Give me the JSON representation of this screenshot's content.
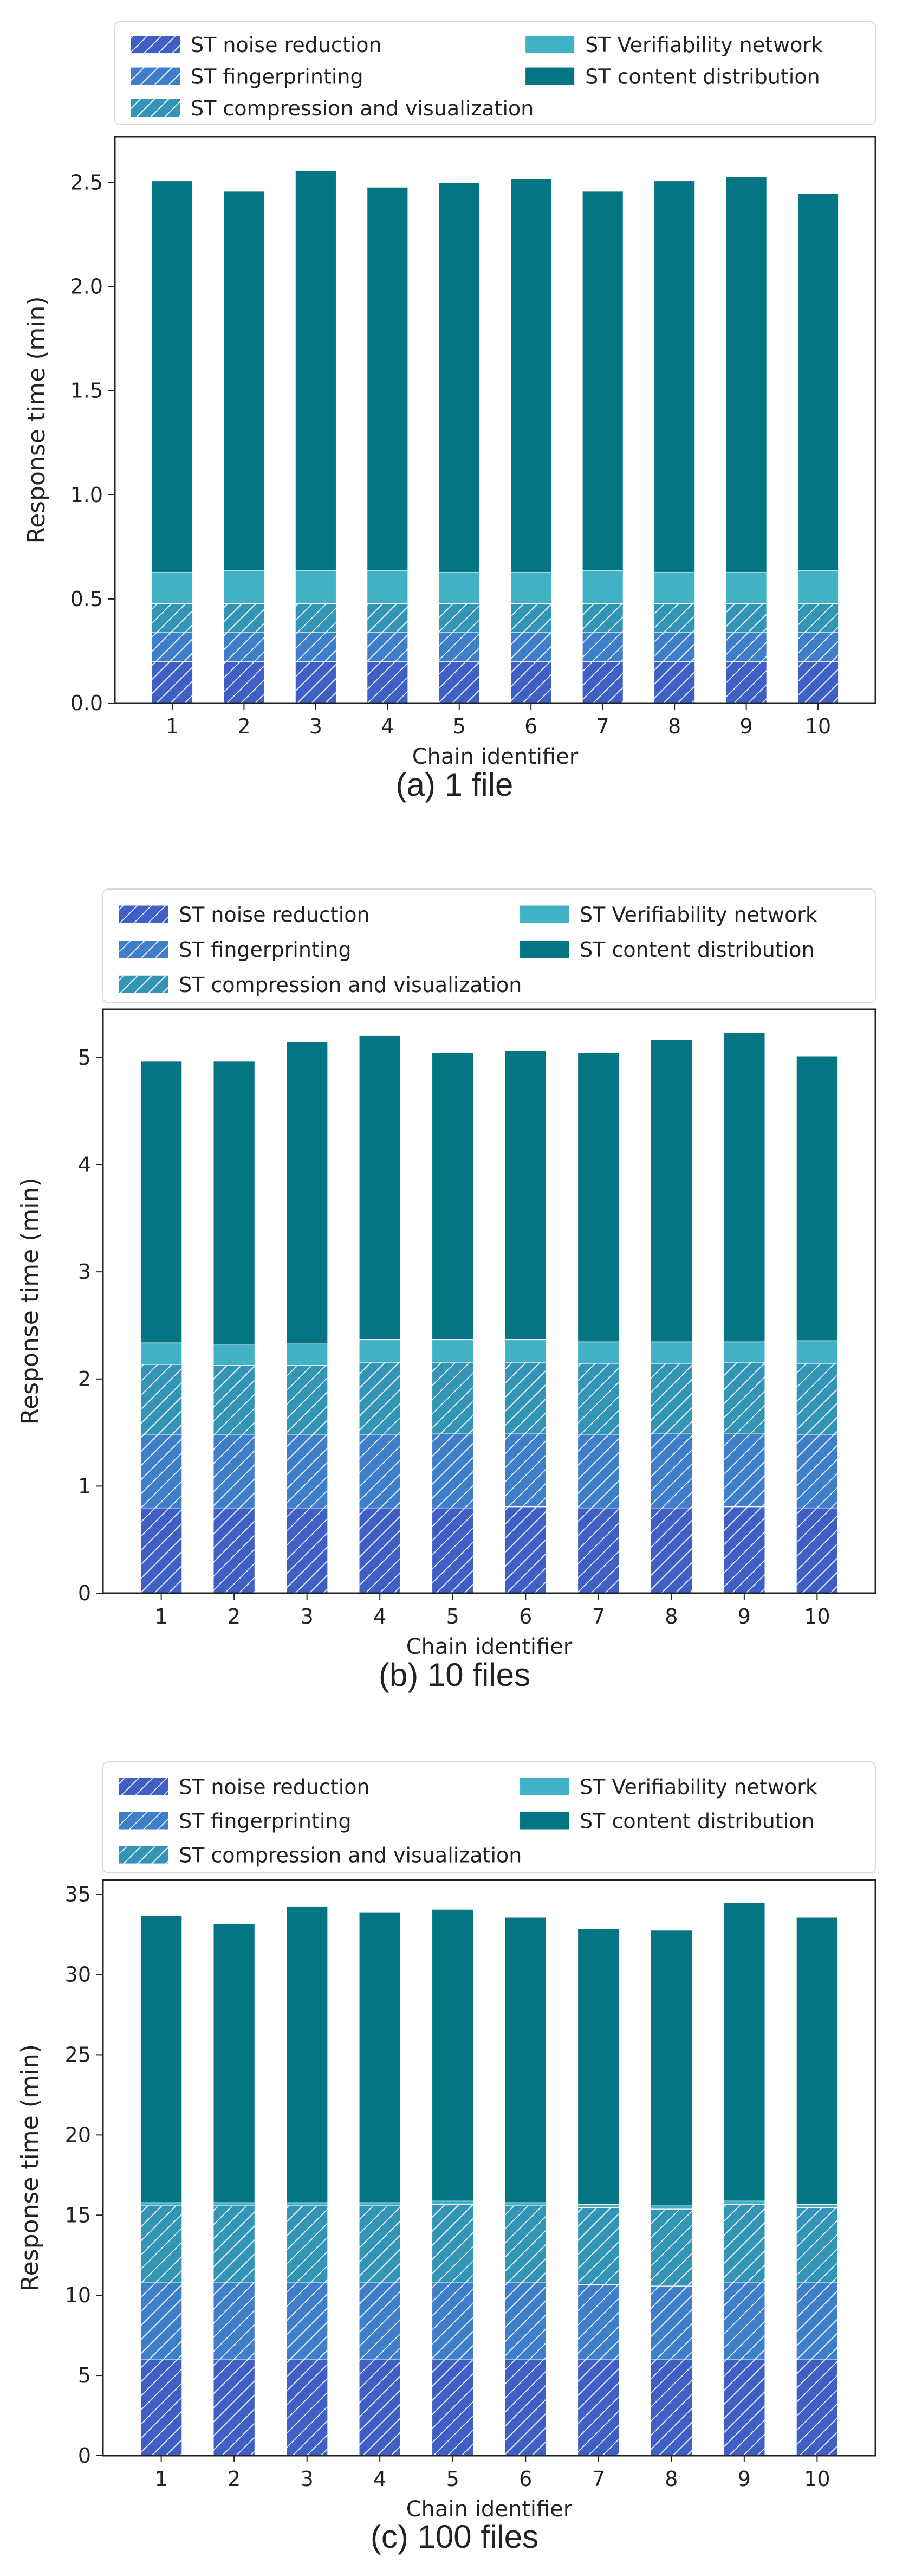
{
  "legend_labels": [
    "ST noise reduction",
    "ST fingerprinting",
    "ST compression and visualization",
    "ST Verifiability network",
    "ST content distribution"
  ],
  "colors": [
    "#3f5fc4",
    "#3f7ec8",
    "#3394b6",
    "#41b2c6",
    "#047583"
  ],
  "chart_data": [
    {
      "type": "bar",
      "stacked": true,
      "caption": "(a) 1 file",
      "xlabel": "Chain identifier",
      "ylabel": "Response time (min)",
      "ylim": [
        0,
        2.72
      ],
      "yticks": [
        0.0,
        0.5,
        1.0,
        1.5,
        2.0,
        2.5
      ],
      "ytick_labels": [
        "0.0",
        "0.5",
        "1.0",
        "1.5",
        "2.0",
        "2.5"
      ],
      "categories": [
        "1",
        "2",
        "3",
        "4",
        "5",
        "6",
        "7",
        "8",
        "9",
        "10"
      ],
      "legend_position": "top (above plot)",
      "series": [
        {
          "name": "ST noise reduction",
          "values": [
            0.2,
            0.2,
            0.2,
            0.2,
            0.2,
            0.2,
            0.2,
            0.2,
            0.2,
            0.2
          ]
        },
        {
          "name": "ST fingerprinting",
          "values": [
            0.14,
            0.14,
            0.14,
            0.14,
            0.14,
            0.14,
            0.14,
            0.14,
            0.14,
            0.14
          ]
        },
        {
          "name": "ST compression and visualization",
          "values": [
            0.14,
            0.14,
            0.14,
            0.14,
            0.14,
            0.14,
            0.14,
            0.14,
            0.14,
            0.14
          ]
        },
        {
          "name": "ST Verifiability network",
          "values": [
            0.15,
            0.16,
            0.16,
            0.16,
            0.15,
            0.15,
            0.16,
            0.15,
            0.15,
            0.16
          ]
        },
        {
          "name": "ST content distribution",
          "values": [
            1.88,
            1.82,
            1.92,
            1.84,
            1.87,
            1.89,
            1.82,
            1.88,
            1.9,
            1.81
          ]
        }
      ]
    },
    {
      "type": "bar",
      "stacked": true,
      "caption": "(b) 10 files",
      "xlabel": "Chain identifier",
      "ylabel": "Response time (min)",
      "ylim": [
        0,
        5.45
      ],
      "yticks": [
        0,
        1,
        2,
        3,
        4,
        5
      ],
      "ytick_labels": [
        "0",
        "1",
        "2",
        "3",
        "4",
        "5"
      ],
      "categories": [
        "1",
        "2",
        "3",
        "4",
        "5",
        "6",
        "7",
        "8",
        "9",
        "10"
      ],
      "legend_position": "top (above plot)",
      "series": [
        {
          "name": "ST noise reduction",
          "values": [
            0.8,
            0.8,
            0.8,
            0.8,
            0.8,
            0.81,
            0.8,
            0.8,
            0.81,
            0.8
          ]
        },
        {
          "name": "ST fingerprinting",
          "values": [
            0.68,
            0.68,
            0.68,
            0.68,
            0.69,
            0.68,
            0.68,
            0.69,
            0.68,
            0.68
          ]
        },
        {
          "name": "ST compression and visualization",
          "values": [
            0.66,
            0.65,
            0.65,
            0.68,
            0.67,
            0.67,
            0.67,
            0.66,
            0.67,
            0.67
          ]
        },
        {
          "name": "ST Verifiability network",
          "values": [
            0.2,
            0.19,
            0.2,
            0.21,
            0.21,
            0.21,
            0.2,
            0.2,
            0.19,
            0.21
          ]
        },
        {
          "name": "ST content distribution",
          "values": [
            2.63,
            2.65,
            2.82,
            2.84,
            2.68,
            2.7,
            2.7,
            2.82,
            2.89,
            2.66
          ]
        }
      ]
    },
    {
      "type": "bar",
      "stacked": true,
      "caption": "(c) 100 files",
      "xlabel": "Chain identifier",
      "ylabel": "Response time (min)",
      "ylim": [
        0,
        35.9
      ],
      "yticks": [
        0,
        5,
        10,
        15,
        20,
        25,
        30,
        35
      ],
      "ytick_labels": [
        "0",
        "5",
        "10",
        "15",
        "20",
        "25",
        "30",
        "35"
      ],
      "categories": [
        "1",
        "2",
        "3",
        "4",
        "5",
        "6",
        "7",
        "8",
        "9",
        "10"
      ],
      "legend_position": "top (above plot)",
      "series": [
        {
          "name": "ST noise reduction",
          "values": [
            6.0,
            6.0,
            6.0,
            6.0,
            6.0,
            6.0,
            6.0,
            6.0,
            6.0,
            6.0
          ]
        },
        {
          "name": "ST fingerprinting",
          "values": [
            4.8,
            4.8,
            4.8,
            4.8,
            4.8,
            4.8,
            4.7,
            4.6,
            4.8,
            4.8
          ]
        },
        {
          "name": "ST compression and visualization",
          "values": [
            4.8,
            4.8,
            4.8,
            4.8,
            4.9,
            4.8,
            4.8,
            4.8,
            4.9,
            4.7
          ]
        },
        {
          "name": "ST Verifiability network",
          "values": [
            0.2,
            0.2,
            0.2,
            0.2,
            0.2,
            0.2,
            0.2,
            0.2,
            0.2,
            0.2
          ]
        },
        {
          "name": "ST content distribution",
          "values": [
            17.9,
            17.4,
            18.5,
            18.1,
            18.2,
            17.8,
            17.2,
            17.2,
            18.6,
            17.9
          ]
        }
      ]
    }
  ]
}
